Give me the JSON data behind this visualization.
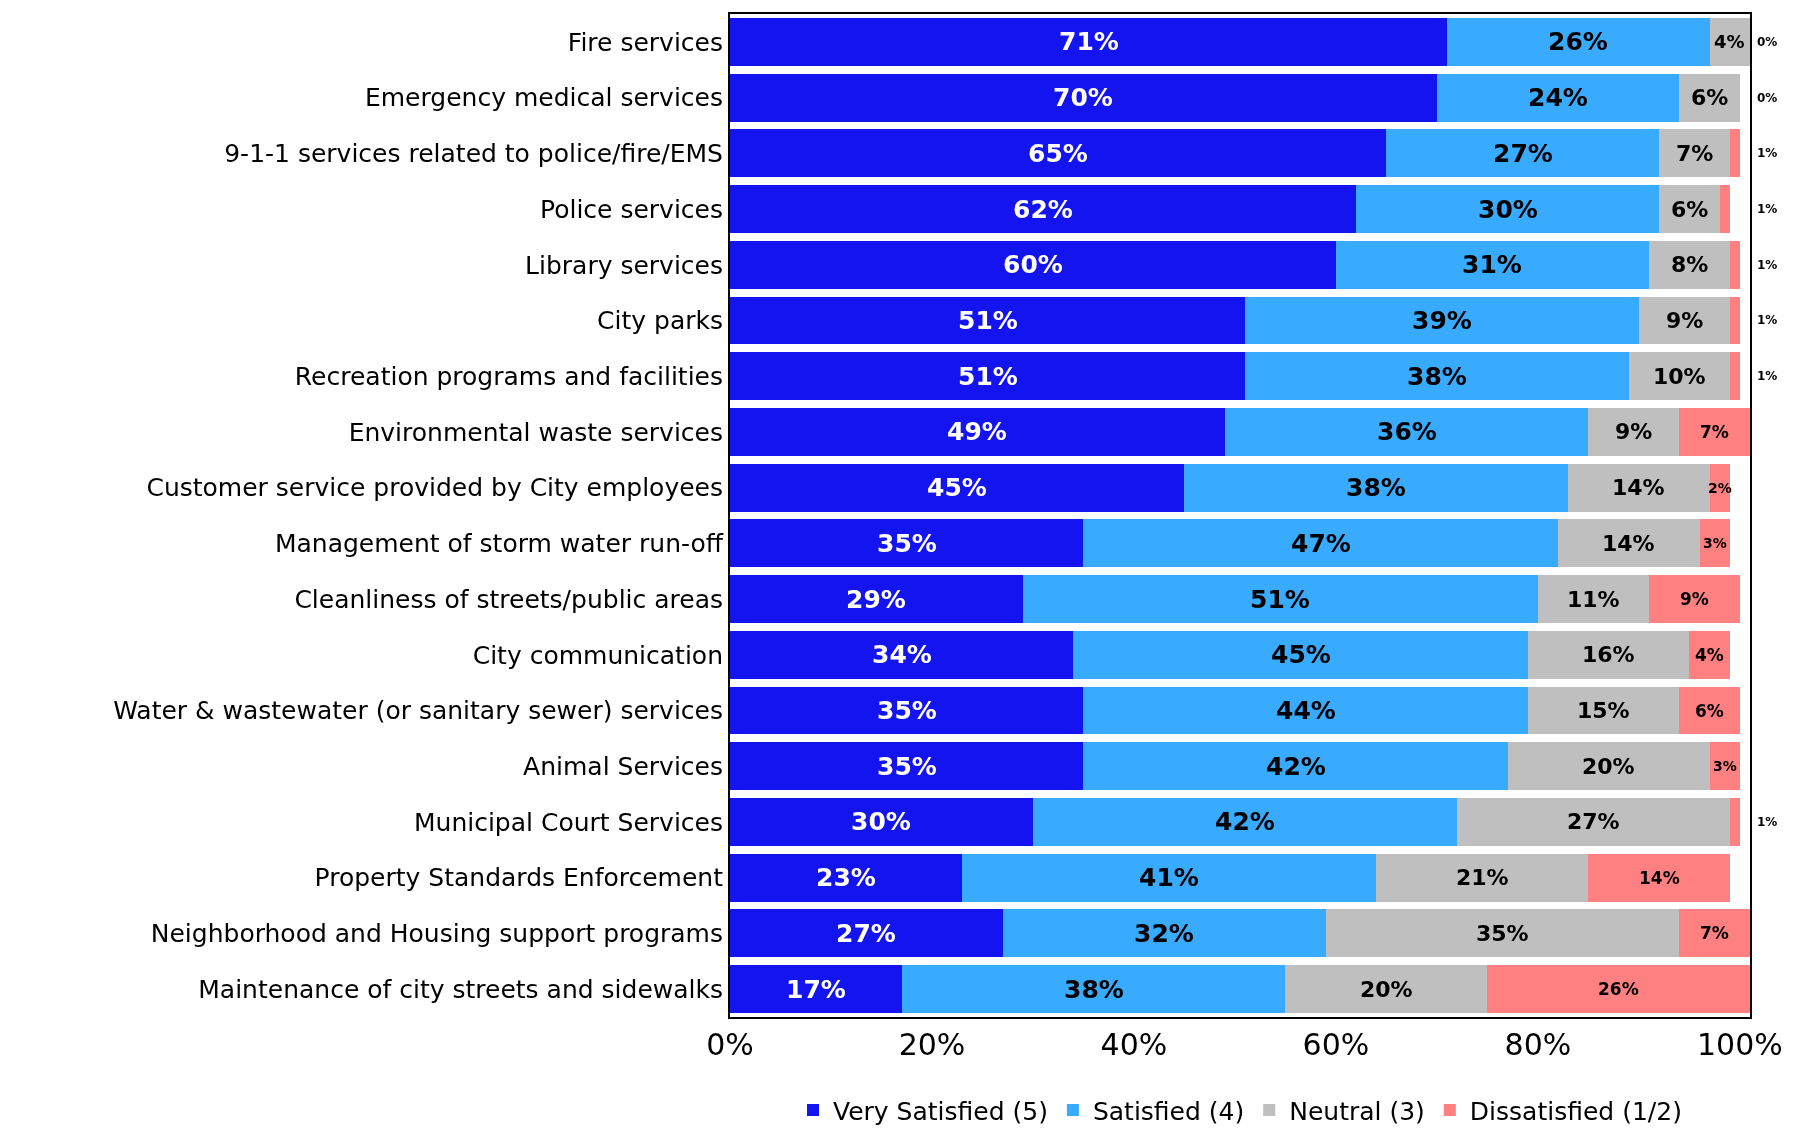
{
  "chart_data": {
    "type": "bar",
    "orientation": "horizontal",
    "stacked": true,
    "legend": "bottom",
    "grid": false,
    "categories": [
      "Fire services",
      "Emergency medical services",
      "9-1-1 services related to police/fire/EMS",
      "Police services",
      "Library services",
      "City parks",
      "Recreation programs and facilities",
      "Environmental waste services",
      "Customer service provided by City employees",
      "Management of storm water run-off",
      "Cleanliness of streets/public areas",
      "City communication",
      "Water & wastewater (or sanitary sewer) services",
      "Animal Services",
      "Municipal Court Services",
      "Property Standards Enforcement",
      "Neighborhood and Housing support programs",
      "Maintenance of city streets and sidewalks"
    ],
    "series": [
      {
        "name": "Very Satisfied (5)",
        "color": "#1414f0",
        "values": [
          71,
          70,
          65,
          62,
          60,
          51,
          51,
          49,
          45,
          35,
          29,
          34,
          35,
          35,
          30,
          23,
          27,
          17
        ],
        "value_labels": [
          "71%",
          "70%",
          "65%",
          "62%",
          "60%",
          "51%",
          "51%",
          "49%",
          "45%",
          "35%",
          "29%",
          "34%",
          "35%",
          "35%",
          "30%",
          "23%",
          "27%",
          "17%"
        ]
      },
      {
        "name": "Satisfied (4)",
        "color": "#38abff",
        "values": [
          26,
          24,
          27,
          30,
          31,
          39,
          38,
          36,
          38,
          47,
          51,
          45,
          44,
          42,
          42,
          41,
          32,
          38
        ],
        "value_labels": [
          "26%",
          "24%",
          "27%",
          "30%",
          "31%",
          "39%",
          "38%",
          "36%",
          "38%",
          "47%",
          "51%",
          "45%",
          "44%",
          "42%",
          "42%",
          "41%",
          "32%",
          "38%"
        ]
      },
      {
        "name": "Neutral (3)",
        "color": "#bfbfbf",
        "values": [
          4,
          6,
          7,
          6,
          8,
          9,
          10,
          9,
          14,
          14,
          11,
          16,
          15,
          20,
          27,
          21,
          35,
          20
        ],
        "value_labels": [
          "4%",
          "6%",
          "7%",
          "6%",
          "8%",
          "9%",
          "10%",
          "9%",
          "14%",
          "14%",
          "11%",
          "16%",
          "15%",
          "20%",
          "27%",
          "21%",
          "35%",
          "20%"
        ]
      },
      {
        "name": "Dissatisfied (1/2)",
        "color": "#ff8080",
        "values": [
          0,
          0,
          1,
          1,
          1,
          1,
          1,
          7,
          2,
          3,
          9,
          4,
          6,
          3,
          1,
          14,
          7,
          26
        ],
        "value_labels": [
          "0%",
          "0%",
          "1%",
          "1%",
          "1%",
          "1%",
          "1%",
          "7%",
          "2%",
          "3%",
          "9%",
          "4%",
          "6%",
          "3%",
          "1%",
          "14%",
          "7%",
          "26%"
        ]
      }
    ],
    "xlim": [
      0,
      101
    ],
    "xticks": [
      {
        "value": 0,
        "label": "0%"
      },
      {
        "value": 20,
        "label": "20%"
      },
      {
        "value": 40,
        "label": "40%"
      },
      {
        "value": 60,
        "label": "60%"
      },
      {
        "value": 80,
        "label": "80%"
      },
      {
        "value": 100,
        "label": "100%"
      }
    ]
  }
}
